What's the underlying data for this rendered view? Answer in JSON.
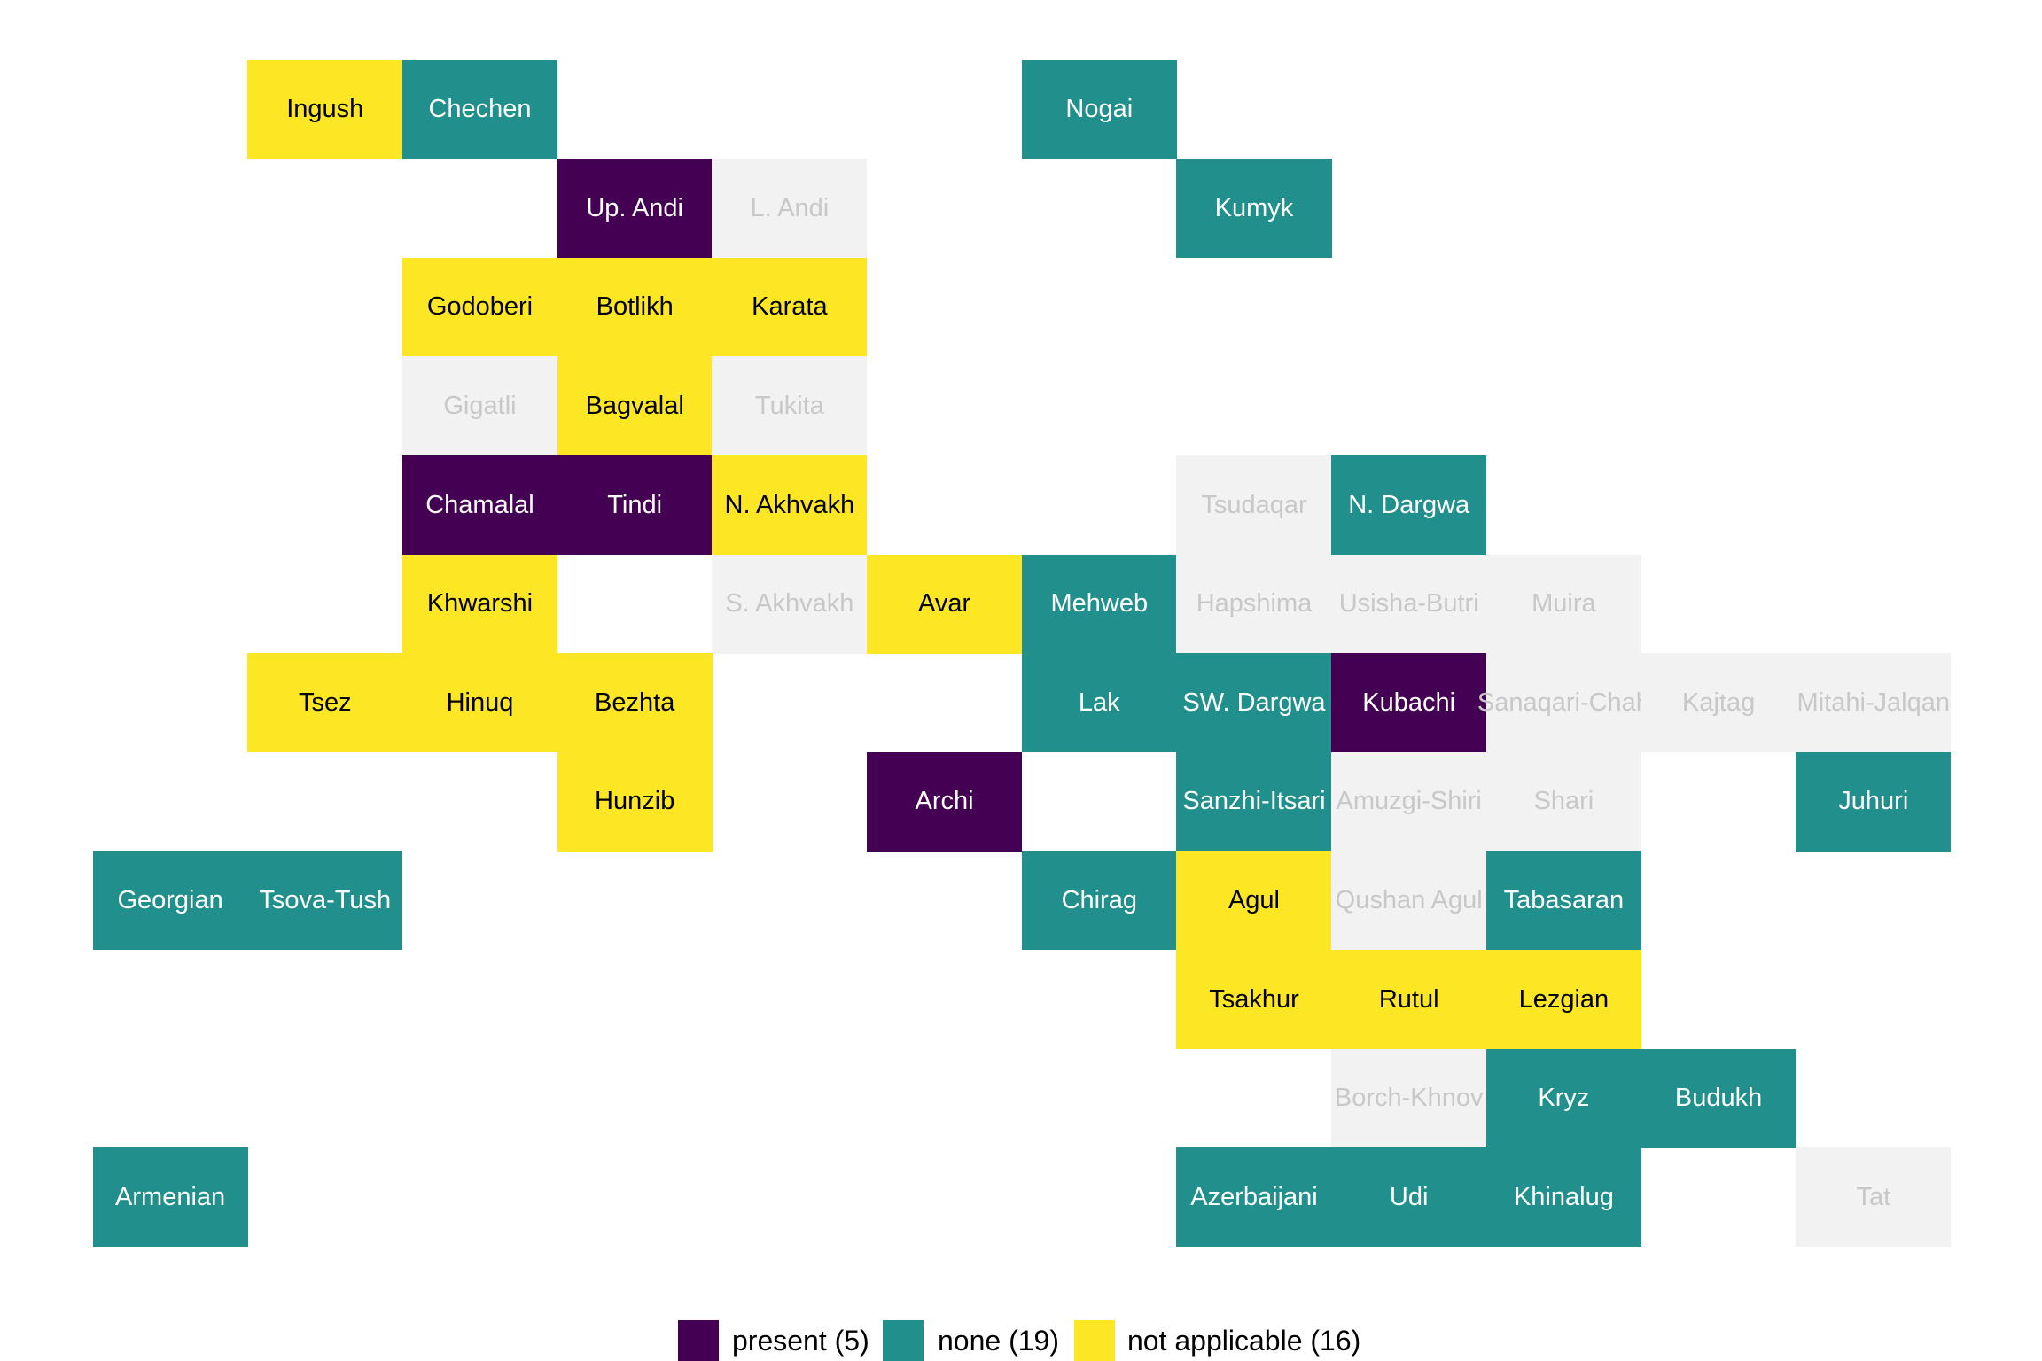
{
  "chart_data": {
    "type": "heatmap",
    "title": "",
    "categories": {
      "present": {
        "label": "present (5)",
        "color": "#440154",
        "text_color": "#FFFFFF"
      },
      "none": {
        "label": "none (19)",
        "color": "#21908C",
        "text_color": "#FFFFFF"
      },
      "not_applicable": {
        "label": "not applicable (16)",
        "color": "#FDE725",
        "text_color": "#000000"
      },
      "no_data": {
        "color": "#F2F2F2",
        "text_color": "#C8C8C8"
      }
    },
    "legend": {
      "placement": "bottom",
      "items": [
        "present (5)",
        "none (19)",
        "not applicable (16)"
      ]
    },
    "cells": [
      {
        "name": "Ingush",
        "value": "not_applicable"
      },
      {
        "name": "Chechen",
        "value": "none"
      },
      {
        "name": "Nogai",
        "value": "none"
      },
      {
        "name": "Up. Andi",
        "value": "present"
      },
      {
        "name": "L. Andi",
        "value": "no_data"
      },
      {
        "name": "Kumyk",
        "value": "none"
      },
      {
        "name": "Godoberi",
        "value": "not_applicable"
      },
      {
        "name": "Botlikh",
        "value": "not_applicable"
      },
      {
        "name": "Karata",
        "value": "not_applicable"
      },
      {
        "name": "Gigatli",
        "value": "no_data"
      },
      {
        "name": "Bagvalal",
        "value": "not_applicable"
      },
      {
        "name": "Tukita",
        "value": "no_data"
      },
      {
        "name": "Chamalal",
        "value": "present"
      },
      {
        "name": "Tindi",
        "value": "present"
      },
      {
        "name": "N. Akhvakh",
        "value": "not_applicable"
      },
      {
        "name": "Tsudaqar",
        "value": "no_data"
      },
      {
        "name": "N. Dargwa",
        "value": "none"
      },
      {
        "name": "Khwarshi",
        "value": "not_applicable"
      },
      {
        "name": "S. Akhvakh",
        "value": "no_data"
      },
      {
        "name": "Avar",
        "value": "not_applicable"
      },
      {
        "name": "Mehweb",
        "value": "none"
      },
      {
        "name": "Hapshima",
        "value": "no_data"
      },
      {
        "name": "Usisha-Butri",
        "value": "no_data"
      },
      {
        "name": "Muira",
        "value": "no_data"
      },
      {
        "name": "Tsez",
        "value": "not_applicable"
      },
      {
        "name": "Hinuq",
        "value": "not_applicable"
      },
      {
        "name": "Bezhta",
        "value": "not_applicable"
      },
      {
        "name": "Lak",
        "value": "none"
      },
      {
        "name": "SW. Dargwa",
        "value": "none"
      },
      {
        "name": "Kubachi",
        "value": "present"
      },
      {
        "name": "Sanaqari-Chah",
        "value": "no_data"
      },
      {
        "name": "Kajtag",
        "value": "no_data"
      },
      {
        "name": "Mitahi-Jalqan",
        "value": "no_data"
      },
      {
        "name": "Hunzib",
        "value": "not_applicable"
      },
      {
        "name": "Archi",
        "value": "present"
      },
      {
        "name": "Sanzhi-Itsari",
        "value": "none"
      },
      {
        "name": "Amuzgi-Shiri",
        "value": "no_data"
      },
      {
        "name": "Shari",
        "value": "no_data"
      },
      {
        "name": "Juhuri",
        "value": "none"
      },
      {
        "name": "Georgian",
        "value": "none"
      },
      {
        "name": "Tsova-Tush",
        "value": "none"
      },
      {
        "name": "Chirag",
        "value": "none"
      },
      {
        "name": "Agul",
        "value": "not_applicable"
      },
      {
        "name": "Qushan Agul",
        "value": "no_data"
      },
      {
        "name": "Tabasaran",
        "value": "none"
      },
      {
        "name": "Tsakhur",
        "value": "not_applicable"
      },
      {
        "name": "Rutul",
        "value": "not_applicable"
      },
      {
        "name": "Lezgian",
        "value": "not_applicable"
      },
      {
        "name": "Borch-Khnov",
        "value": "no_data"
      },
      {
        "name": "Kryz",
        "value": "none"
      },
      {
        "name": "Budukh",
        "value": "none"
      },
      {
        "name": "Armenian",
        "value": "none"
      },
      {
        "name": "Azerbaijani",
        "value": "none"
      },
      {
        "name": "Udi",
        "value": "none"
      },
      {
        "name": "Khinalug",
        "value": "none"
      },
      {
        "name": "Tat",
        "value": "no_data"
      }
    ]
  }
}
